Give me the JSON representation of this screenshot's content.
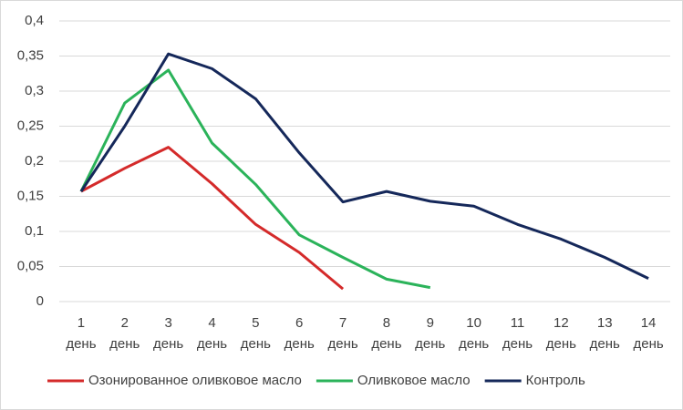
{
  "chart_data": {
    "type": "line",
    "categories": [
      "1 день",
      "2 день",
      "3 день",
      "4 день",
      "5 день",
      "6 день",
      "7 день",
      "8 день",
      "9 день",
      "10 день",
      "11 день",
      "12 день",
      "13 день",
      "14 день"
    ],
    "series": [
      {
        "name": "Озонированное оливковое масло",
        "color": "#d42a2a",
        "values": [
          0.157,
          0.19,
          0.22,
          0.168,
          0.11,
          0.07,
          0.018,
          null,
          null,
          null,
          null,
          null,
          null,
          null
        ]
      },
      {
        "name": "Оливковое масло",
        "color": "#2bb35a",
        "values": [
          0.157,
          0.283,
          0.33,
          0.226,
          0.167,
          0.095,
          0.063,
          0.032,
          0.02,
          null,
          null,
          null,
          null,
          null
        ]
      },
      {
        "name": "Контроль",
        "color": "#15285a",
        "values": [
          0.157,
          0.25,
          0.353,
          0.332,
          0.289,
          0.212,
          0.142,
          0.157,
          0.143,
          0.136,
          0.11,
          0.089,
          0.063,
          0.033
        ]
      }
    ],
    "ylim": [
      0,
      0.4
    ],
    "yticks": [
      0,
      {
        "value": 0.05,
        "label": "0,05"
      },
      {
        "value": 0.1,
        "label": "0,1"
      },
      {
        "value": 0.15,
        "label": "0,15"
      },
      {
        "value": 0.2,
        "label": "0,2"
      },
      {
        "value": 0.25,
        "label": "0,25"
      },
      {
        "value": 0.3,
        "label": "0,3"
      },
      {
        "value": 0.35,
        "label": "0,35"
      },
      {
        "value": 0.4,
        "label": "0,4"
      }
    ],
    "grid": true,
    "legend": "bottom"
  }
}
